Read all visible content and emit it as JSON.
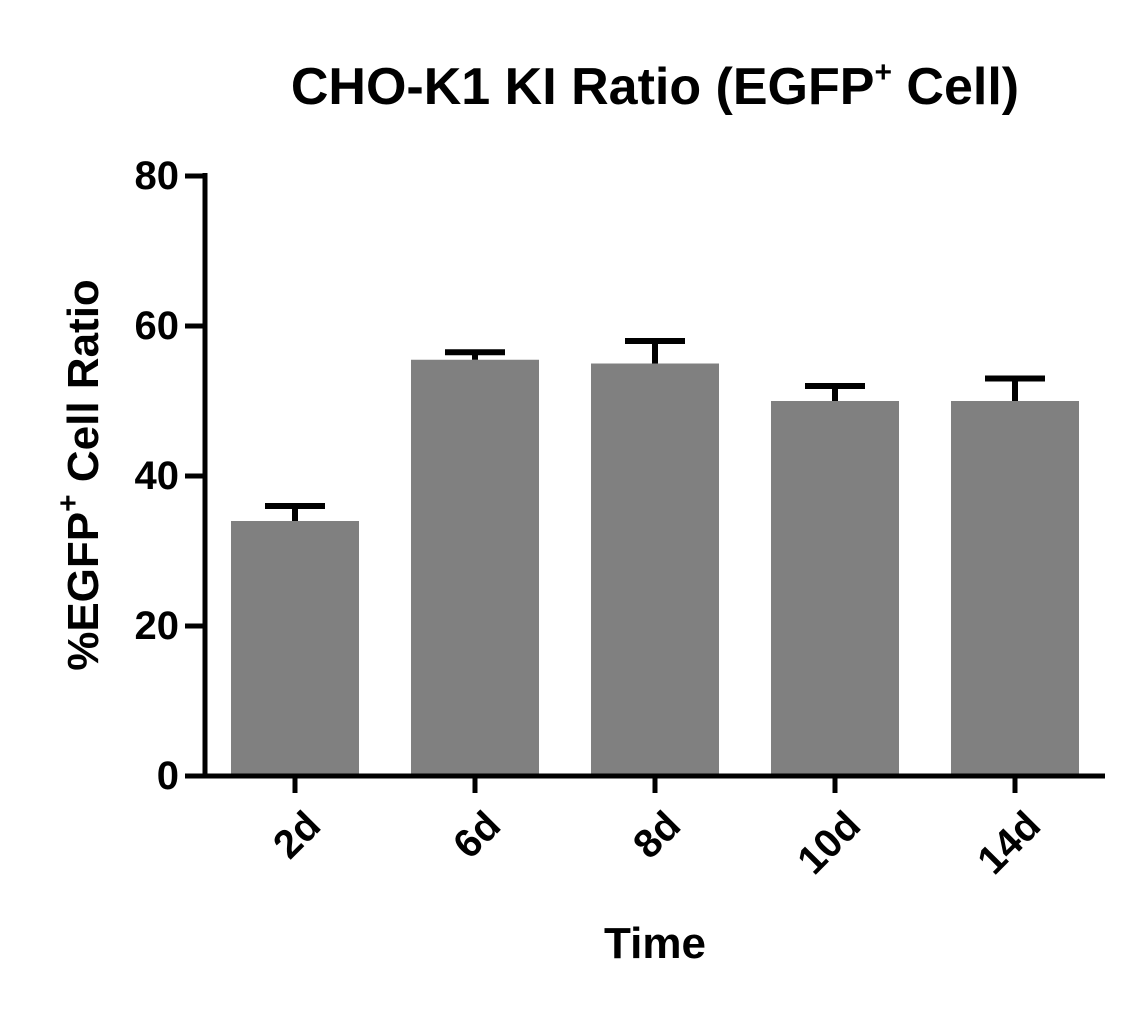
{
  "chart_data": {
    "type": "bar",
    "title": "CHO-K1 KI Ratio (EGFP",
    "title_sup": "+",
    "title_end": " Cell)",
    "ylabel": "%EGFP",
    "ylabel_sup": "+",
    "ylabel_end": " Cell Ratio",
    "xlabel": "Time",
    "categories": [
      "2d",
      "6d",
      "8d",
      "10d",
      "14d"
    ],
    "values": [
      34,
      55.5,
      55,
      50,
      50
    ],
    "errors": [
      2,
      1,
      3,
      2,
      3
    ],
    "ylim": [
      0,
      80
    ],
    "yticks": [
      0,
      20,
      40,
      60,
      80
    ],
    "grid": false,
    "bar_color": "#808080",
    "axis_color": "#000000"
  }
}
